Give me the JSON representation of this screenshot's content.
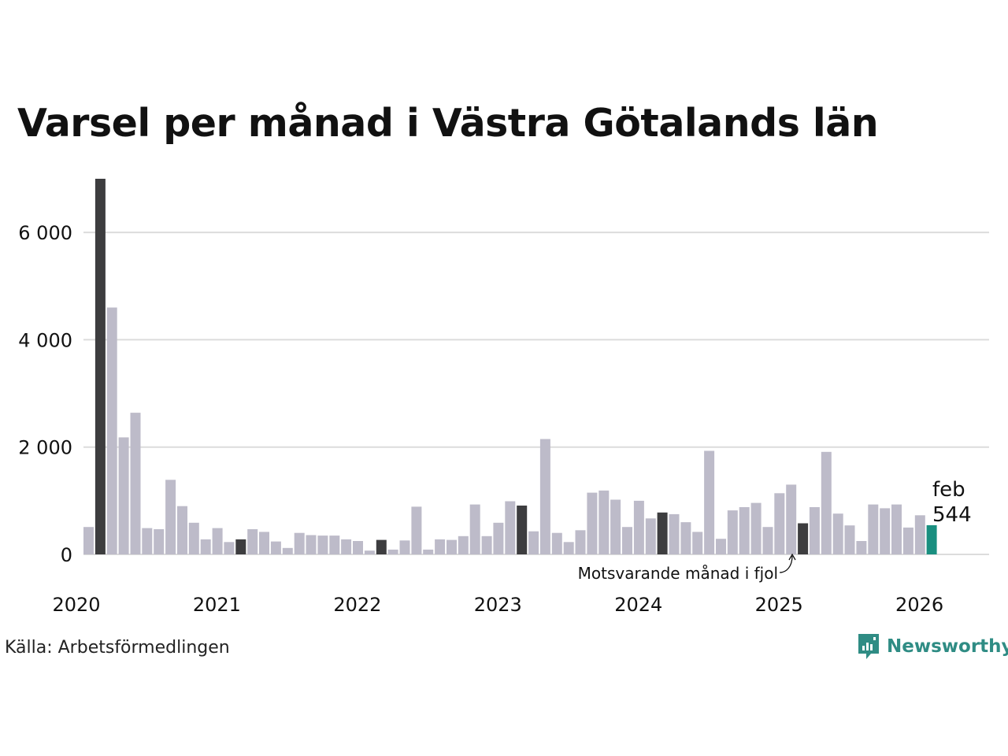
{
  "colors": {
    "bar_default": "#bdbbc9",
    "bar_year_ago": "#3d3d3f",
    "bar_current": "#1a8f80",
    "grid": "#dcdcdc",
    "text": "#111111",
    "brand": "#2f8c84"
  },
  "chart_data": {
    "type": "bar",
    "title": "Varsel per månad i Västra Götalands län",
    "xlabel": "",
    "ylabel": "",
    "ylim": [
      0,
      7000
    ],
    "y_ticks": [
      0,
      2000,
      4000,
      6000
    ],
    "y_tick_labels": [
      "0",
      "2 000",
      "4 000",
      "6 000"
    ],
    "x_tick_labels": [
      "2020",
      "2021",
      "2022",
      "2023",
      "2024",
      "2025",
      "2026"
    ],
    "grid": true,
    "start": "2020-01",
    "highlight_month": 2,
    "values": [
      510,
      7000,
      4600,
      2180,
      2640,
      490,
      470,
      1390,
      900,
      590,
      280,
      490,
      230,
      280,
      470,
      420,
      240,
      120,
      400,
      360,
      350,
      350,
      280,
      250,
      70,
      270,
      90,
      260,
      890,
      90,
      280,
      270,
      340,
      930,
      340,
      590,
      990,
      910,
      430,
      2150,
      400,
      230,
      450,
      1150,
      1190,
      1020,
      510,
      1000,
      670,
      780,
      750,
      600,
      420,
      1930,
      290,
      820,
      880,
      960,
      510,
      1140,
      1300,
      580,
      880,
      1910,
      760,
      540,
      250,
      930,
      860,
      930,
      500,
      730,
      544
    ],
    "annotation_label": "Motsvarande månad i fjol",
    "current_label": "feb",
    "current_value_label": "544"
  },
  "source": "Källa: Arbetsförmedlingen",
  "brand": {
    "name": "Newsworthy",
    "icon": "newsworthy-logo-icon"
  }
}
